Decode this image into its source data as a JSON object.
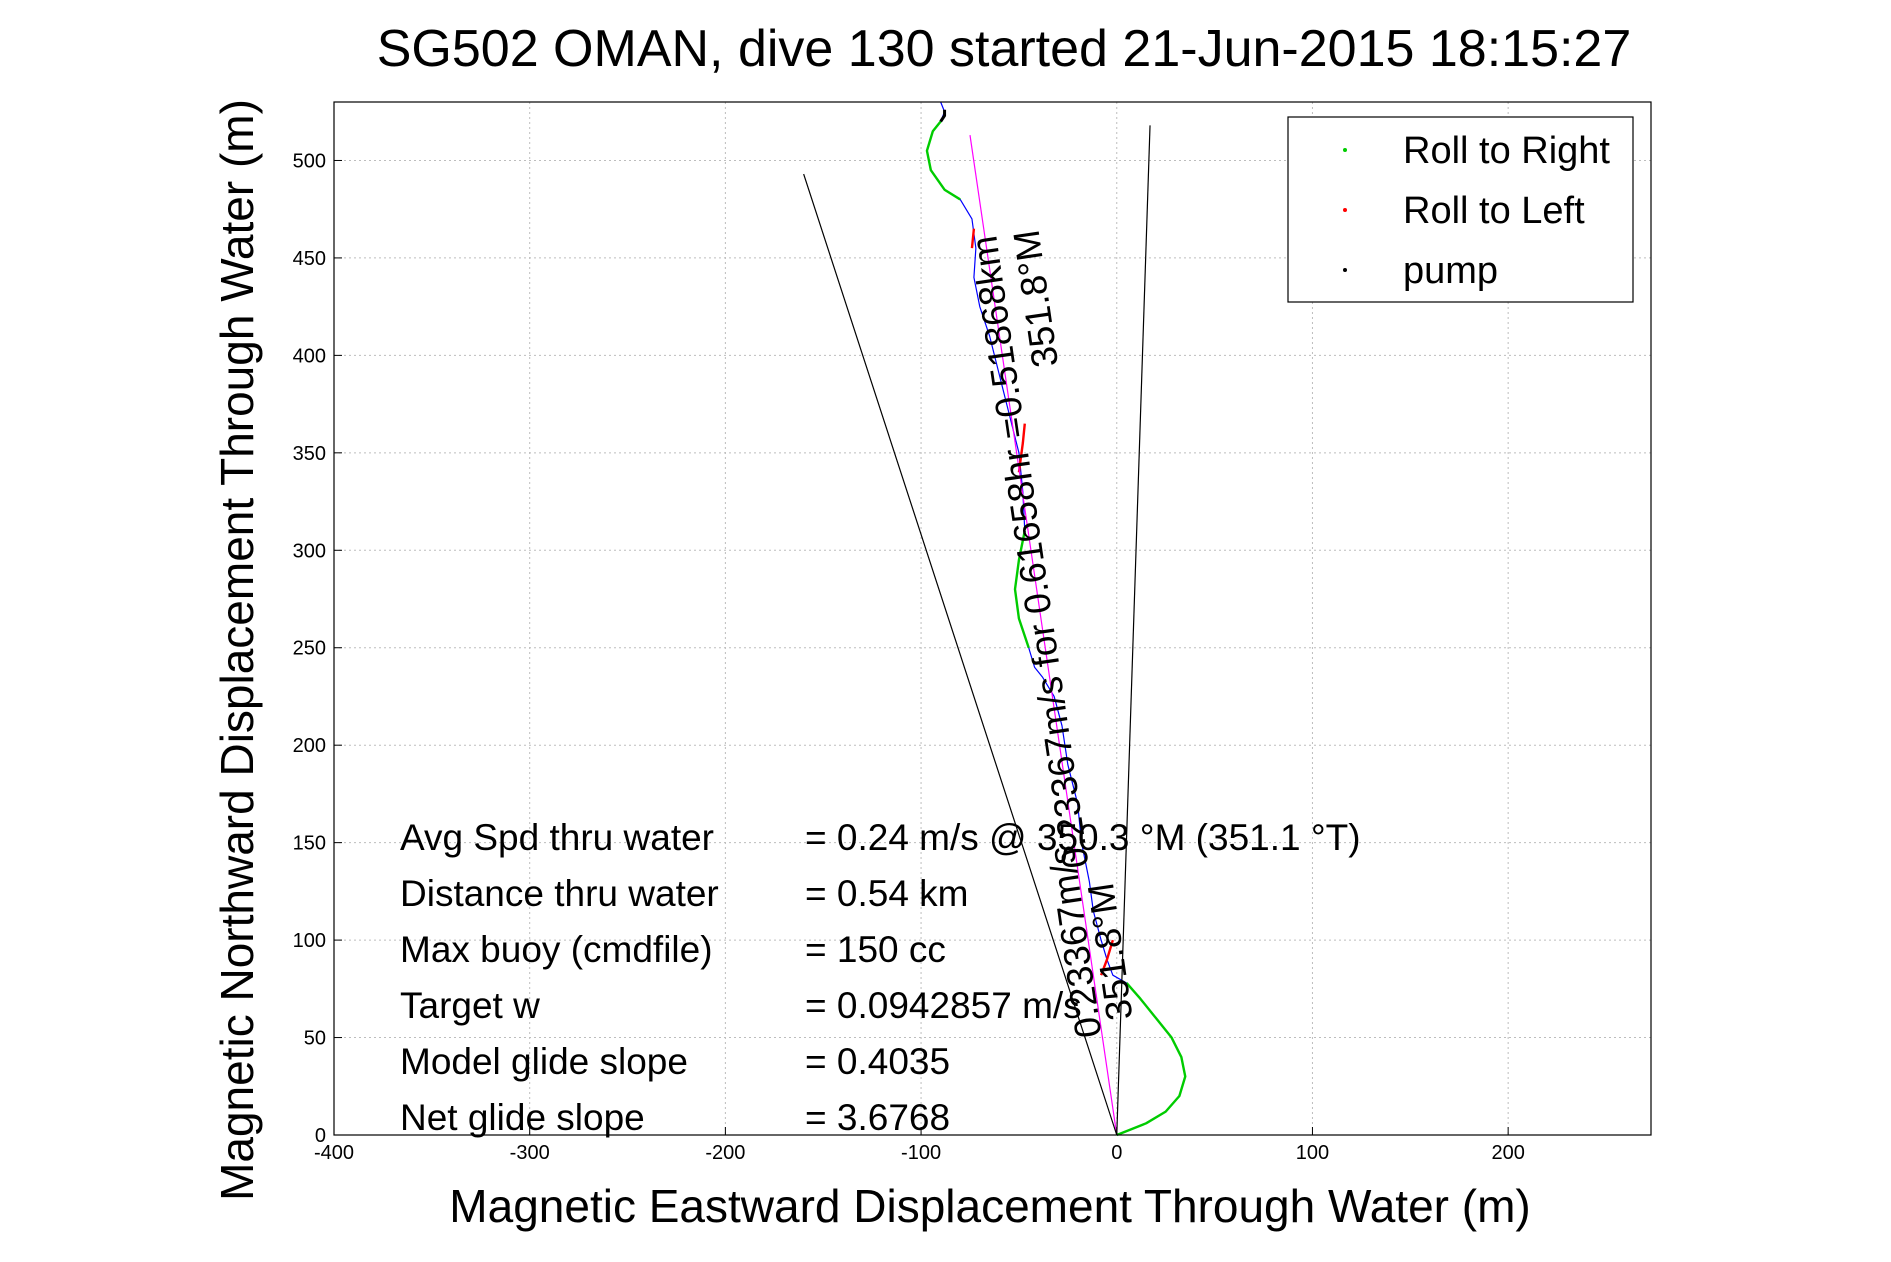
{
  "chart_data": {
    "type": "line",
    "title": "SG502 OMAN, dive 130 started 21-Jun-2015 18:15:27",
    "xlabel": "Magnetic Eastward Displacement Through Water (m)",
    "ylabel": "Magnetic Northward Displacement Through Water (m)",
    "xlim": [
      -400,
      273
    ],
    "ylim": [
      0,
      530
    ],
    "xticks": [
      -400,
      -300,
      -200,
      -100,
      0,
      100,
      200
    ],
    "yticks": [
      0,
      50,
      100,
      150,
      200,
      250,
      300,
      350,
      400,
      450,
      500
    ],
    "grid": true,
    "legend_position": "top-right",
    "legend": [
      {
        "label": "Roll to Right",
        "color": "#00cc00"
      },
      {
        "label": "Roll to Left",
        "color": "#ff0000"
      },
      {
        "label": "pump",
        "color": "#000000"
      }
    ],
    "series": [
      {
        "color": "#0000ff",
        "x": [
          0,
          5,
          15,
          25,
          32,
          35,
          33,
          28,
          20,
          12,
          5,
          -2,
          -5,
          -8,
          -12,
          -14,
          -18,
          -20,
          -25,
          -28,
          -32,
          -38,
          -42,
          -45,
          -50,
          -52,
          -50,
          -47,
          -48,
          -50,
          -55,
          -60,
          -65,
          -70,
          -73,
          -72,
          -74,
          -80,
          -88,
          -95,
          -97,
          -94,
          -90,
          -88,
          -90
        ],
        "y": [
          0,
          2,
          6,
          12,
          20,
          30,
          40,
          50,
          60,
          70,
          78,
          82,
          90,
          100,
          115,
          130,
          150,
          170,
          190,
          210,
          225,
          235,
          240,
          250,
          265,
          280,
          295,
          310,
          330,
          350,
          370,
          390,
          410,
          425,
          440,
          455,
          470,
          480,
          485,
          495,
          505,
          515,
          520,
          525,
          530
        ]
      },
      {
        "name": "Roll to Right",
        "color": "#00cc00",
        "x": [
          0,
          5,
          15,
          25,
          32,
          35,
          33,
          28,
          20,
          12,
          5
        ],
        "y": [
          0,
          2,
          6,
          12,
          20,
          30,
          40,
          50,
          60,
          70,
          78
        ]
      },
      {
        "name": "Roll to Right",
        "color": "#00cc00",
        "x": [
          -45,
          -50,
          -52,
          -50,
          -47
        ],
        "y": [
          250,
          265,
          280,
          295,
          310
        ]
      },
      {
        "name": "Roll to Right",
        "color": "#00cc00",
        "x": [
          -80,
          -88,
          -95,
          -97,
          -94,
          -90
        ],
        "y": [
          480,
          485,
          495,
          505,
          515,
          520
        ]
      },
      {
        "name": "Roll to Left",
        "color": "#ff0000",
        "x": [
          -8,
          -5,
          -2
        ],
        "y": [
          82,
          90,
          100
        ]
      },
      {
        "name": "Roll to Left",
        "color": "#ff0000",
        "x": [
          -50,
          -48,
          -47
        ],
        "y": [
          340,
          355,
          365
        ]
      },
      {
        "name": "Roll to Left",
        "color": "#ff0000",
        "x": [
          -74,
          -73
        ],
        "y": [
          455,
          465
        ]
      },
      {
        "name": "pump",
        "color": "#000000",
        "x": [
          -90,
          -88,
          -88
        ],
        "y": [
          520,
          523,
          526
        ]
      },
      {
        "color": "#ff00ff",
        "x": [
          0,
          -75
        ],
        "y": [
          0,
          513
        ]
      },
      {
        "color": "#000000",
        "x": [
          0,
          -160
        ],
        "y": [
          0,
          493
        ]
      },
      {
        "color": "#000000",
        "x": [
          0,
          17
        ],
        "y": [
          0,
          518
        ]
      }
    ],
    "annotations": [
      {
        "text": "Avg Spd thru water",
        "value": "=  0.24 m/s @ 350.3 °M (351.1 °T)"
      },
      {
        "text": "Distance thru water",
        "value": "=  0.54 km"
      },
      {
        "text": "Max buoy (cmdfile)",
        "value": "= 150 cc"
      },
      {
        "text": "Target w",
        "value": "= 0.0942857 m/s"
      },
      {
        "text": "Model glide slope",
        "value": "= 0.4035"
      },
      {
        "text": "Net glide slope",
        "value": "= 3.6768"
      }
    ],
    "rotated_labels": [
      {
        "text": "351.8°M",
        "x": -35,
        "y": 430
      },
      {
        "text": "0.23367m/s for 0.61658hr =0.51868km",
        "x": -38,
        "y": 300
      },
      {
        "text": "351.8°M",
        "x": 3,
        "y": 95
      },
      {
        "text": "0.23367m/s",
        "x": -15,
        "y": 100
      }
    ]
  }
}
